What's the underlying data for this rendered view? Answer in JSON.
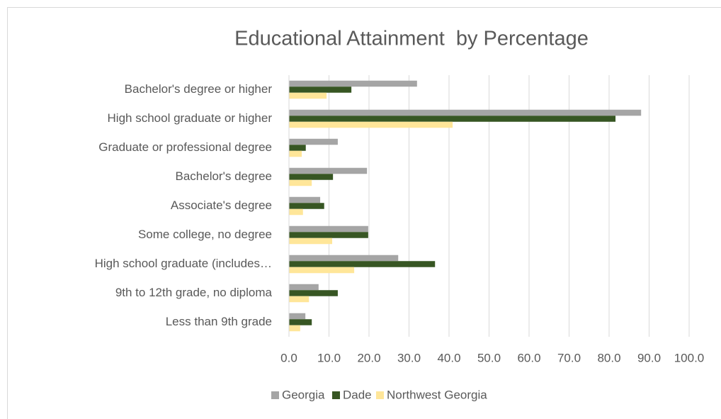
{
  "chart_data": {
    "type": "hbar",
    "title": "Educational Attainment  by Percentage",
    "categories": [
      "Bachelor's degree or higher",
      "High school graduate or higher",
      "Graduate or professional degree",
      "Bachelor's degree",
      "Associate's degree",
      "Some college, no degree",
      "High school graduate (includes…",
      "9th to 12th grade, no diploma",
      "Less than 9th grade"
    ],
    "series": [
      {
        "name": "Georgia",
        "color": "#a5a5a5",
        "values": [
          32.0,
          88.0,
          12.2,
          19.5,
          7.8,
          19.8,
          27.3,
          7.4,
          4.1
        ]
      },
      {
        "name": "Dade",
        "color": "#375623",
        "values": [
          15.6,
          81.6,
          4.2,
          11.0,
          8.8,
          19.8,
          36.5,
          12.2,
          5.7
        ]
      },
      {
        "name": "Northwest Georgia",
        "color": "#ffe699",
        "values": [
          9.4,
          40.9,
          3.2,
          5.7,
          3.5,
          10.8,
          16.3,
          5.0,
          2.8
        ]
      }
    ],
    "xlim": [
      0,
      100
    ],
    "xticks": [
      {
        "value": 0,
        "label": "0.0"
      },
      {
        "value": 10,
        "label": "10.0"
      },
      {
        "value": 20,
        "label": "20.0"
      },
      {
        "value": 30,
        "label": "30.0"
      },
      {
        "value": 40,
        "label": "40.0"
      },
      {
        "value": 50,
        "label": "50.0"
      },
      {
        "value": 60,
        "label": "60.0"
      },
      {
        "value": 70,
        "label": "70.0"
      },
      {
        "value": 80,
        "label": "80.0"
      },
      {
        "value": 90,
        "label": "90.0"
      },
      {
        "value": 100,
        "label": "100.0"
      }
    ],
    "grid": true,
    "legend": "bottom"
  }
}
